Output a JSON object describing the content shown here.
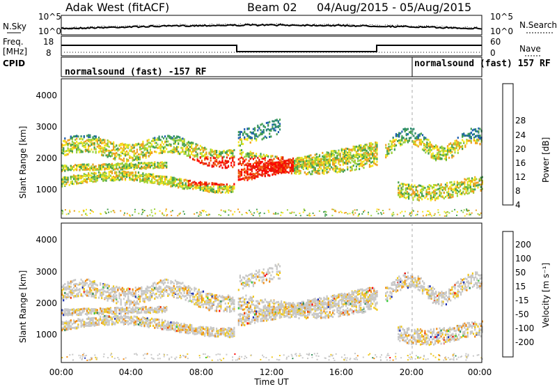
{
  "header": {
    "radar": "Adak West (fitACF)",
    "beam": "Beam 02",
    "dates": "04/Aug/2015 - 05/Aug/2015"
  },
  "top_strip": {
    "nsky_label": "N.Sky",
    "nsky_ticks": [
      "10^5",
      "10^0"
    ],
    "nsearch_label": "N.Search",
    "nsearch_ticks": [
      "10^5",
      "10^0"
    ],
    "freq_label_1": "Freq.",
    "freq_label_2": "[MHz]",
    "freq_ticks": [
      "18",
      "8"
    ],
    "nave_label": "Nave",
    "nave_ticks": [
      "60",
      "0"
    ],
    "cpid_label": "CPID",
    "cpid_left": "normalsound (fast) -157 RF",
    "cpid_right": "normalsound (fast) 157 RF"
  },
  "colors": {
    "power_scale": [
      "#0000ff",
      "#1e5fb0",
      "#2d8c6e",
      "#45a050",
      "#9bd23c",
      "#f5e61e",
      "#f0a01e",
      "#f06414",
      "#e61e0a",
      "#ff0000"
    ],
    "velocity_scale": [
      "#1a2db4",
      "#2e8b57",
      "#32c832",
      "#c8c8c8",
      "#c8c8c8",
      "#f0c81e",
      "#f08c14",
      "#f03c0a",
      "#ff0000"
    ]
  },
  "chart_data": [
    {
      "type": "heatmap",
      "name": "power",
      "ylabel": "Slant Range [km]",
      "y_ticks": [
        "1000",
        "2000",
        "3000",
        "4000"
      ],
      "ylim": [
        0,
        4500
      ],
      "colorbar_label": "Power [dB]",
      "colorbar_ticks": [
        "4",
        "8",
        "12",
        "16",
        "20",
        "24",
        "28"
      ]
    },
    {
      "type": "heatmap",
      "name": "velocity",
      "ylabel": "Slant Range [km]",
      "y_ticks": [
        "1000",
        "2000",
        "3000",
        "4000"
      ],
      "ylim": [
        0,
        4500
      ],
      "colorbar_label": "Velocity [m s⁻¹]",
      "colorbar_ticks": [
        "200",
        "100",
        "50",
        "15",
        "-15",
        "-50",
        "-100",
        "-200"
      ]
    }
  ],
  "x_axis": {
    "label": "Time UT",
    "ticks": [
      "00:00",
      "04:00",
      "08:00",
      "12:00",
      "16:00",
      "20:00",
      "00:00"
    ]
  }
}
